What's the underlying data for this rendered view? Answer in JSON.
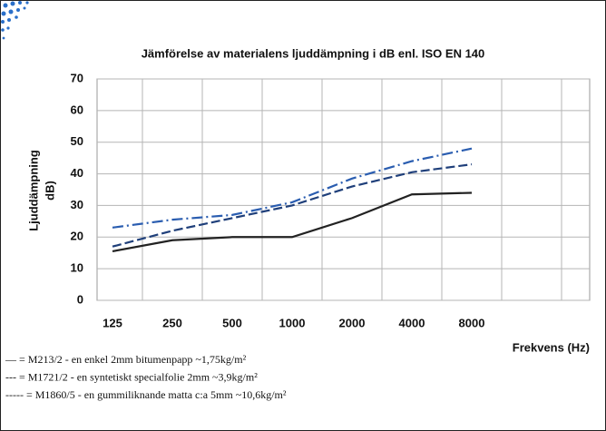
{
  "chart_data": {
    "type": "line",
    "title": "Jämförelse av materialens ljuddämpning i dB enl. ISO EN 140",
    "ylabel": [
      "Ljuddämpning",
      "dB)"
    ],
    "xlabel": "Frekvens (Hz)",
    "categories": [
      "125",
      "250",
      "500",
      "1000",
      "2000",
      "4000",
      "8000"
    ],
    "ylim": [
      0,
      70
    ],
    "yticks": [
      0,
      10,
      20,
      30,
      40,
      50,
      60,
      70
    ],
    "grid": true,
    "series": [
      {
        "name": "— = M213/2 - en enkel 2mm bitumenpapp ~1,75kg/m²",
        "color": "#222222",
        "dash": "solid",
        "values": [
          15.5,
          19,
          20,
          20,
          26,
          33.5,
          34
        ]
      },
      {
        "name": "--- = M1721/2 - en syntetiskt specialfolie 2mm ~3,9kg/m²",
        "color": "#1f3f7a",
        "dash": "dash",
        "values": [
          17,
          22,
          26,
          30,
          36,
          40.5,
          43
        ]
      },
      {
        "name": "----- = M1860/5 - en gummiliknande matta c:a 5mm ~10,6kg/m²",
        "color": "#2a5db0",
        "dash": "dashdot",
        "values": [
          23,
          25.5,
          27,
          31,
          38.5,
          44,
          48
        ]
      }
    ]
  }
}
